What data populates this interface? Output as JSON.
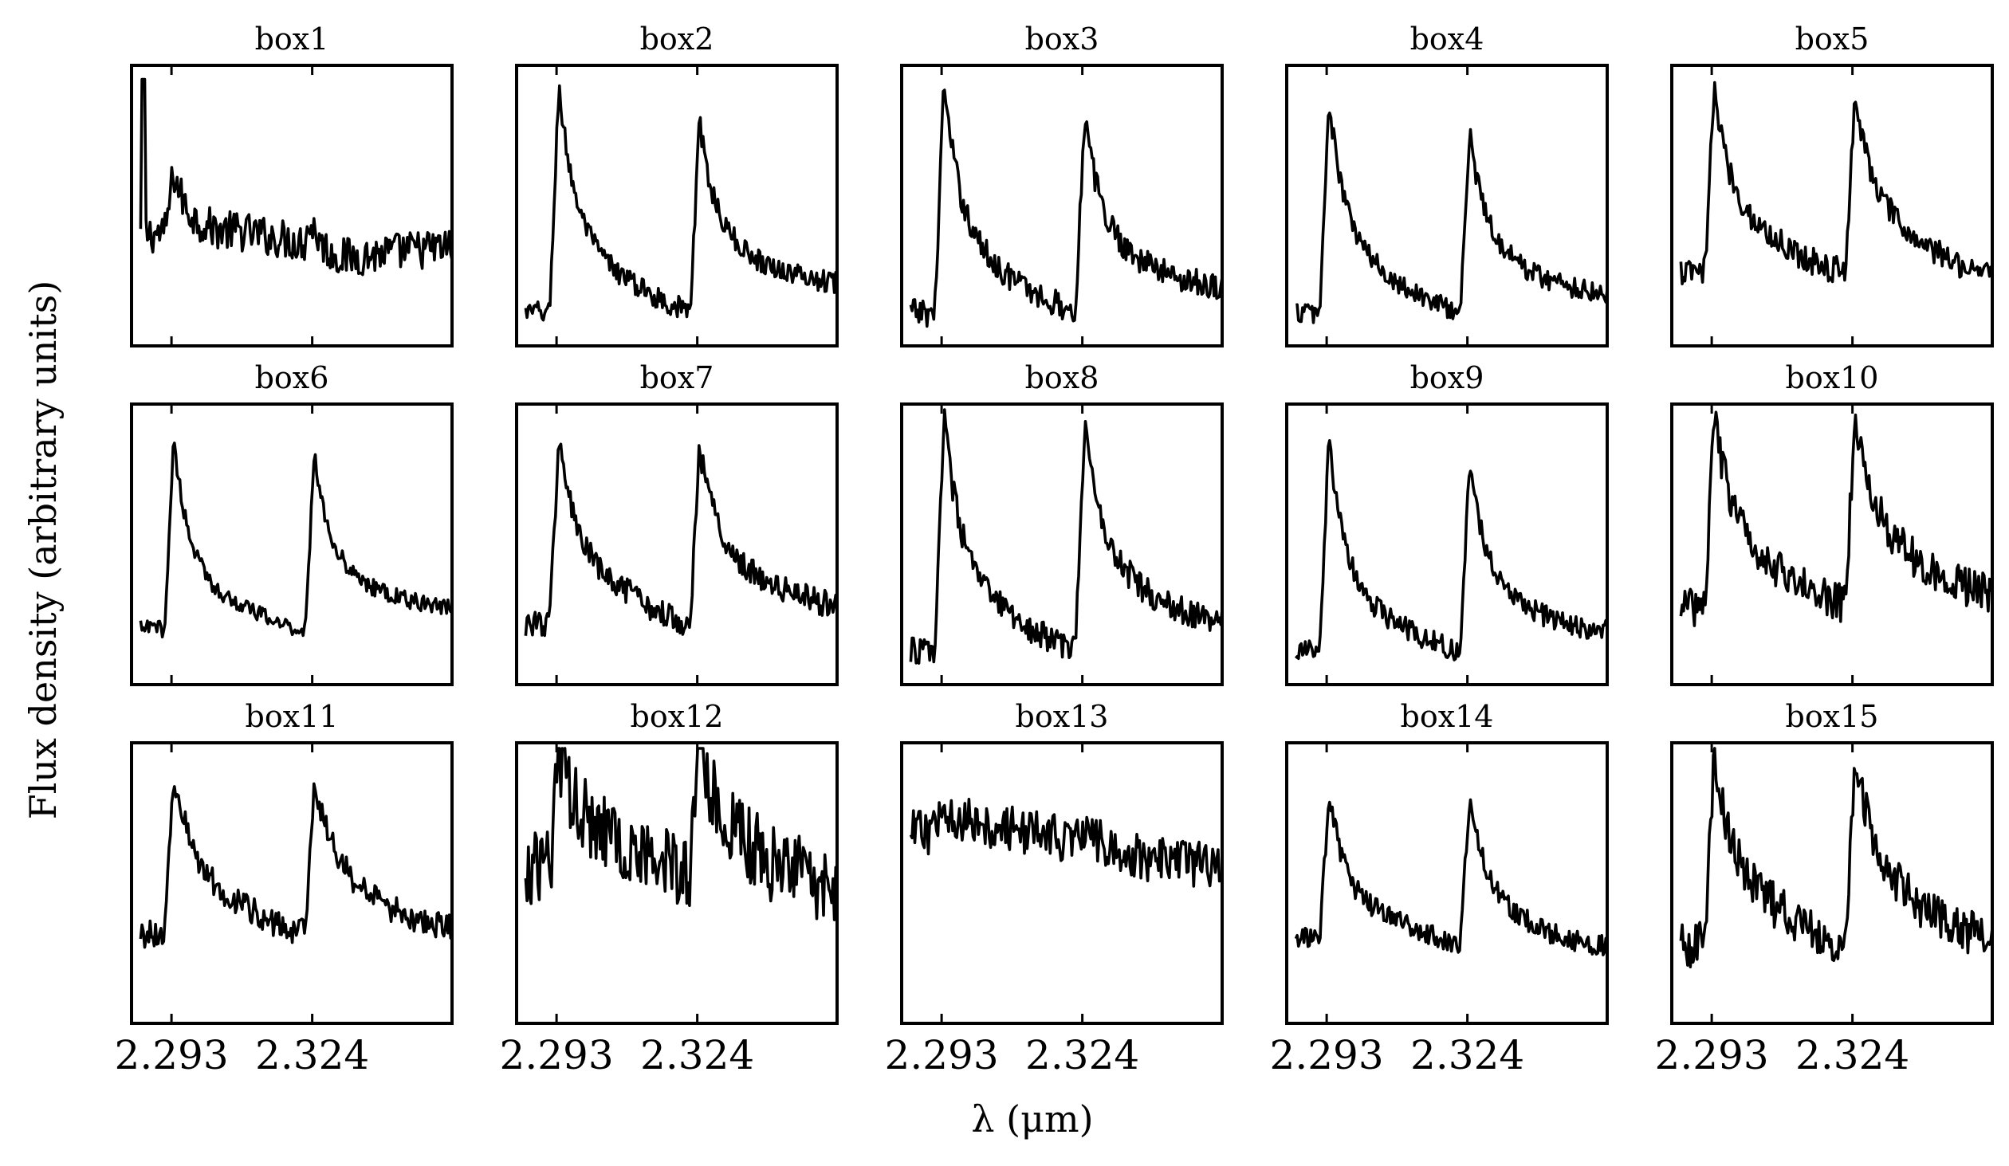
{
  "chart_data": {
    "type": "line",
    "xlabel": "λ (μm)",
    "ylabel": "Flux density (arbitrary units)",
    "xlim": [
      2.2842,
      2.3548
    ],
    "x_ticks": [
      2.293,
      2.324
    ],
    "x_tick_labels": [
      "2.293",
      "2.324"
    ],
    "y_tick_labels": "none",
    "grid": false,
    "layout": {
      "rows": 3,
      "cols": 5
    },
    "line_color": "#000000",
    "panels": [
      {
        "title": "box1",
        "features": {
          "baseline": 0.4,
          "noise": 0.07,
          "peak1": 0.62,
          "peak2": 0.42,
          "decay_drop": 0.2,
          "right_level": 0.36,
          "spike": {
            "x": 2.2868,
            "height": 0.95
          }
        }
      },
      {
        "title": "box2",
        "features": {
          "baseline": 0.12,
          "noise": 0.04,
          "peak1": 0.93,
          "peak2": 0.8,
          "decay_drop": 0.4,
          "right_level": 0.2
        }
      },
      {
        "title": "box3",
        "features": {
          "baseline": 0.12,
          "noise": 0.05,
          "peak1": 0.94,
          "peak2": 0.82,
          "decay_drop": 0.4,
          "right_level": 0.18
        }
      },
      {
        "title": "box4",
        "features": {
          "baseline": 0.12,
          "noise": 0.04,
          "peak1": 0.88,
          "peak2": 0.76,
          "decay_drop": 0.38,
          "right_level": 0.16
        }
      },
      {
        "title": "box5",
        "features": {
          "baseline": 0.26,
          "noise": 0.05,
          "peak1": 0.92,
          "peak2": 0.9,
          "decay_drop": 0.3,
          "right_level": 0.22
        }
      },
      {
        "title": "box6",
        "features": {
          "baseline": 0.2,
          "noise": 0.03,
          "peak1": 0.88,
          "peak2": 0.82,
          "decay_drop": 0.4,
          "right_level": 0.25
        }
      },
      {
        "title": "box7",
        "features": {
          "baseline": 0.22,
          "noise": 0.05,
          "peak1": 0.89,
          "peak2": 0.85,
          "decay_drop": 0.3,
          "right_level": 0.25
        }
      },
      {
        "title": "box8",
        "features": {
          "baseline": 0.12,
          "noise": 0.05,
          "peak1": 0.96,
          "peak2": 0.93,
          "decay_drop": 0.4,
          "right_level": 0.18
        }
      },
      {
        "title": "box9",
        "features": {
          "baseline": 0.12,
          "noise": 0.04,
          "peak1": 0.88,
          "peak2": 0.8,
          "decay_drop": 0.42,
          "right_level": 0.16
        }
      },
      {
        "title": "box10",
        "features": {
          "baseline": 0.28,
          "noise": 0.07,
          "peak1": 0.96,
          "peak2": 0.94,
          "decay_drop": 0.25,
          "right_level": 0.28
        }
      },
      {
        "title": "box11",
        "features": {
          "baseline": 0.32,
          "noise": 0.05,
          "peak1": 0.9,
          "peak2": 0.87,
          "decay_drop": 0.22,
          "right_level": 0.3
        }
      },
      {
        "title": "box12",
        "features": {
          "baseline": 0.55,
          "noise": 0.14,
          "peak1": 0.95,
          "peak2": 0.95,
          "decay_drop": 0.1,
          "right_level": 0.45
        }
      },
      {
        "title": "box13",
        "features": {
          "baseline": 0.68,
          "noise": 0.08,
          "peak1": 0.78,
          "peak2": 0.7,
          "decay_drop": 0.05,
          "right_level": 0.55
        }
      },
      {
        "title": "box14",
        "features": {
          "baseline": 0.3,
          "noise": 0.04,
          "peak1": 0.83,
          "peak2": 0.8,
          "decay_drop": 0.3,
          "right_level": 0.24
        }
      },
      {
        "title": "box15",
        "features": {
          "baseline": 0.28,
          "noise": 0.08,
          "peak1": 0.95,
          "peak2": 0.96,
          "decay_drop": 0.25,
          "right_level": 0.25
        }
      }
    ]
  }
}
